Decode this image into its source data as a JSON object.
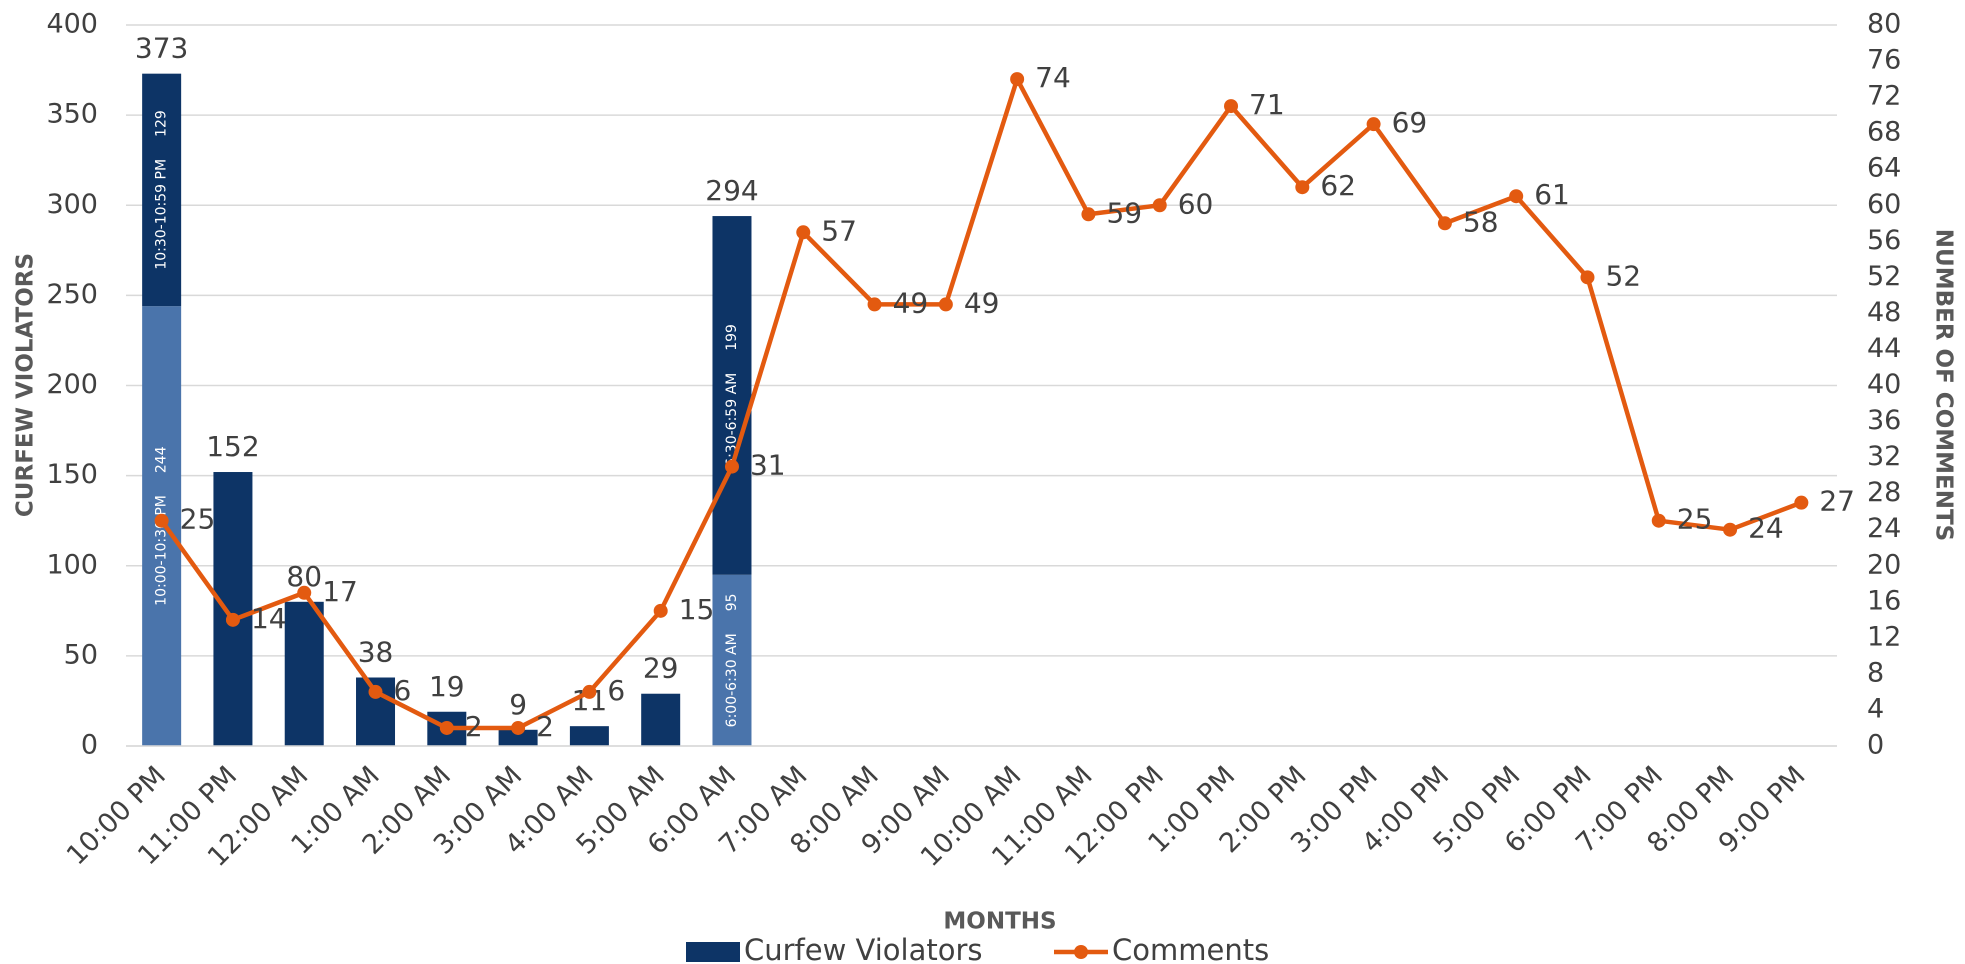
{
  "chart_data": {
    "type": "combo",
    "x_label": "MONTHS",
    "y_label": "CURFEW VIOLATORS",
    "y2_label": "NUMBER OF COMMENTS",
    "categories": [
      "10:00 PM",
      "11:00 PM",
      "12:00 AM",
      "1:00 AM",
      "2:00 AM",
      "3:00 AM",
      "4:00 AM",
      "5:00 AM",
      "6:00 AM",
      "7:00 AM",
      "8:00 AM",
      "9:00 AM",
      "10:00 AM",
      "11:00 AM",
      "12:00 PM",
      "1:00 PM",
      "2:00 PM",
      "3:00 PM",
      "4:00 PM",
      "5:00 PM",
      "6:00 PM",
      "7:00 PM",
      "8:00 PM",
      "9:00 PM"
    ],
    "ylim": [
      0,
      400
    ],
    "yticks": [
      0,
      50,
      100,
      150,
      200,
      250,
      300,
      350,
      400
    ],
    "y2lim": [
      0,
      80
    ],
    "y2ticks": [
      0,
      4,
      8,
      12,
      16,
      20,
      24,
      28,
      32,
      36,
      40,
      44,
      48,
      52,
      56,
      60,
      64,
      68,
      72,
      76,
      80
    ],
    "grid": true,
    "legend": "bottom",
    "series": [
      {
        "name": "Curfew Violators",
        "type": "bar",
        "color": "#0d3466",
        "values": [
          373,
          152,
          80,
          38,
          19,
          9,
          11,
          29,
          294,
          null,
          null,
          null,
          null,
          null,
          null,
          null,
          null,
          null,
          null,
          null,
          null,
          null,
          null,
          null
        ],
        "breakdown": [
          [
            {
              "label": "10:00-10:30 PM",
              "value": 244,
              "color": "#4a74ab"
            },
            {
              "label": "10:30-10:59 PM",
              "value": 129,
              "color": "#0d3466"
            }
          ],
          null,
          null,
          null,
          null,
          null,
          null,
          null,
          [
            {
              "label": "6:00-6:30 AM",
              "value": 95,
              "color": "#4a74ab"
            },
            {
              "label": "6:30-6:59 AM",
              "value": 199,
              "color": "#0d3466"
            }
          ],
          null,
          null,
          null,
          null,
          null,
          null,
          null,
          null,
          null,
          null,
          null,
          null,
          null,
          null,
          null
        ]
      },
      {
        "name": "Comments",
        "type": "line",
        "axis": "y2",
        "color": "#e35a10",
        "values": [
          25,
          14,
          17,
          6,
          2,
          2,
          6,
          15,
          31,
          57,
          49,
          49,
          74,
          59,
          60,
          71,
          62,
          69,
          58,
          61,
          52,
          25,
          24,
          27
        ]
      }
    ]
  }
}
